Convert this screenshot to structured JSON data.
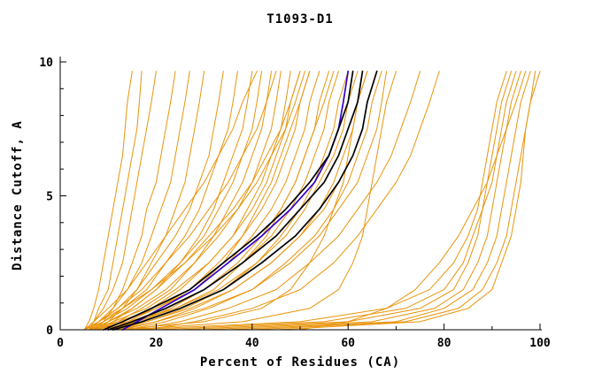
{
  "chart_data": {
    "type": "line",
    "title": "T1093-D1",
    "xlabel": "Percent of Residues (CA)",
    "ylabel": "Distance Cutoff, A",
    "xlim": [
      0,
      100
    ],
    "ylim": [
      0,
      10
    ],
    "x_major_ticks": [
      0,
      20,
      40,
      60,
      80,
      100
    ],
    "x_minor_ticks": [
      10,
      30,
      50,
      70,
      90
    ],
    "y_major_ticks": [
      0,
      5,
      10
    ],
    "y_minor_ticks": [
      1,
      2,
      3,
      4,
      6,
      7,
      8,
      9
    ],
    "grid": false,
    "legend": null,
    "colors": {
      "ensemble": "#e8940a",
      "selected": "#3300cc",
      "highlight": "#000000",
      "axis": "#000000"
    },
    "y_grid": [
      0,
      0.3,
      0.8,
      1.5,
      2.5,
      3.5,
      4.5,
      5.5,
      6.5,
      7.5,
      8.5,
      9.65
    ],
    "series_groups": [
      {
        "name": "ensemble-model-curves",
        "color_key": "ensemble",
        "stroke_width": 1,
        "series": [
          [
            5,
            6,
            7,
            8,
            9,
            10,
            11,
            12,
            13,
            13.5,
            14,
            15
          ],
          [
            6,
            7,
            8,
            10,
            11,
            12,
            13,
            14,
            15,
            16,
            16.5,
            17
          ],
          [
            5,
            7,
            9,
            11,
            13,
            14,
            15,
            16,
            17,
            18,
            19,
            20
          ],
          [
            7,
            9,
            11,
            13,
            15,
            17,
            18,
            20,
            21,
            22,
            23,
            24
          ],
          [
            6,
            8,
            11,
            14,
            17,
            19,
            21,
            23,
            24,
            25,
            26,
            27
          ],
          [
            8,
            10,
            13,
            16,
            19,
            22,
            24,
            26,
            27,
            28,
            29,
            30
          ],
          [
            5,
            8,
            12,
            16,
            20,
            24,
            27,
            29,
            31,
            32,
            33,
            34
          ],
          [
            6,
            9,
            13,
            18,
            22,
            26,
            29,
            31,
            33,
            35,
            36,
            37
          ],
          [
            7,
            10,
            15,
            20,
            25,
            29,
            32,
            34,
            36,
            38,
            39,
            40
          ],
          [
            5,
            9,
            14,
            19,
            25,
            30,
            33,
            36,
            38,
            40,
            41,
            42
          ],
          [
            8,
            12,
            17,
            23,
            28,
            32,
            35,
            38,
            40,
            42,
            43,
            44
          ],
          [
            6,
            10,
            16,
            22,
            28,
            33,
            37,
            40,
            42,
            44,
            45,
            46
          ],
          [
            9,
            13,
            19,
            25,
            31,
            36,
            39,
            42,
            44,
            46,
            47,
            48
          ],
          [
            7,
            11,
            18,
            24,
            31,
            36,
            40,
            43,
            45,
            47,
            48,
            50
          ],
          [
            10,
            14,
            20,
            27,
            33,
            38,
            42,
            45,
            47,
            49,
            50,
            52
          ],
          [
            8,
            13,
            20,
            28,
            35,
            40,
            44,
            47,
            49,
            51,
            52,
            54
          ],
          [
            11,
            16,
            23,
            30,
            37,
            42,
            46,
            49,
            51,
            53,
            54,
            56
          ],
          [
            9,
            15,
            22,
            30,
            38,
            44,
            48,
            51,
            53,
            55,
            56,
            58
          ],
          [
            12,
            18,
            26,
            34,
            41,
            46,
            50,
            53,
            55,
            57,
            58,
            60
          ],
          [
            10,
            16,
            24,
            33,
            41,
            47,
            51,
            54,
            57,
            59,
            60,
            62
          ],
          [
            13,
            20,
            28,
            36,
            44,
            50,
            54,
            57,
            59,
            61,
            62,
            64
          ],
          [
            11,
            18,
            27,
            36,
            44,
            50,
            55,
            58,
            61,
            63,
            64,
            66
          ],
          [
            14,
            22,
            31,
            40,
            47,
            53,
            57,
            60,
            62,
            64,
            65,
            67
          ],
          [
            12,
            20,
            30,
            40,
            48,
            54,
            58,
            62,
            64,
            66,
            67,
            68
          ],
          [
            6,
            12,
            20,
            28,
            34,
            38,
            41,
            44,
            46,
            48,
            50,
            52
          ],
          [
            7,
            14,
            24,
            32,
            38,
            43,
            46,
            49,
            51,
            53,
            55,
            57
          ],
          [
            15,
            25,
            35,
            45,
            52,
            58,
            62,
            66,
            69,
            71,
            73,
            75
          ],
          [
            18,
            28,
            40,
            50,
            57,
            62,
            66,
            70,
            73,
            75,
            77,
            79
          ],
          [
            25,
            60,
            75,
            82,
            85,
            87,
            88,
            89,
            90,
            91,
            92,
            94
          ],
          [
            30,
            65,
            78,
            84,
            87,
            89,
            90,
            91,
            92,
            93,
            94,
            96
          ],
          [
            35,
            70,
            80,
            86,
            89,
            91,
            92,
            93,
            94,
            95,
            96,
            98
          ],
          [
            40,
            72,
            83,
            88,
            91,
            93,
            94,
            95,
            96,
            97,
            98,
            99
          ],
          [
            20,
            55,
            72,
            80,
            84,
            86,
            88,
            90,
            91,
            92,
            93,
            95
          ],
          [
            45,
            75,
            85,
            90,
            92,
            94,
            95,
            96,
            96.5,
            97,
            98,
            100
          ],
          [
            15,
            50,
            68,
            77,
            82,
            85,
            87,
            88,
            89,
            90,
            91,
            93
          ],
          [
            50,
            60,
            68,
            74,
            79,
            83,
            86,
            89,
            91,
            93,
            95,
            97
          ],
          [
            5,
            7,
            10,
            14,
            18,
            22,
            26,
            30,
            33,
            36,
            38,
            41
          ],
          [
            6,
            8,
            12,
            17,
            22,
            27,
            31,
            35,
            38,
            41,
            43,
            45
          ],
          [
            5,
            8,
            13,
            19,
            26,
            32,
            37,
            41,
            44,
            47,
            49,
            51
          ],
          [
            8,
            11,
            15,
            20,
            26,
            31,
            36,
            40,
            43,
            46,
            48,
            50
          ],
          [
            12,
            30,
            42,
            48,
            52,
            55,
            57,
            59,
            60,
            61,
            62,
            64
          ],
          [
            14,
            38,
            52,
            58,
            61,
            63,
            64,
            65,
            66,
            67,
            68,
            70
          ]
        ]
      },
      {
        "name": "selected-model-curve",
        "color_key": "selected",
        "stroke_width": 1.7,
        "series": [
          [
            13,
            16,
            21,
            28,
            35,
            42,
            48,
            53,
            56,
            58,
            59,
            60
          ]
        ]
      },
      {
        "name": "highlighted-model-curves",
        "color_key": "highlight",
        "stroke_width": 1.7,
        "series": [
          [
            9,
            13,
            19,
            27,
            34,
            41,
            47,
            52,
            56,
            58,
            60,
            61
          ],
          [
            10,
            15,
            22,
            30,
            38,
            45,
            50,
            55,
            58,
            60,
            62,
            63
          ],
          [
            11,
            17,
            25,
            34,
            42,
            49,
            54,
            58,
            61,
            63,
            64,
            66
          ]
        ]
      }
    ]
  }
}
